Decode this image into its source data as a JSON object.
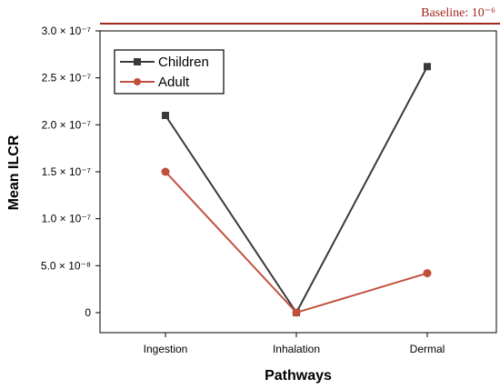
{
  "chart_data": {
    "type": "line",
    "title": "",
    "xlabel": "Pathways",
    "ylabel": "Mean ILCR",
    "categories": [
      "Ingestion",
      "Inhalation",
      "Dermal"
    ],
    "ylim": [
      0,
      3e-07
    ],
    "yticks": [
      {
        "value": 0,
        "label": "0"
      },
      {
        "value": 5e-08,
        "label": "5.0 × 10⁻⁸"
      },
      {
        "value": 1e-07,
        "label": "1.0 × 10⁻⁷"
      },
      {
        "value": 1.5e-07,
        "label": "1.5 × 10⁻⁷"
      },
      {
        "value": 2e-07,
        "label": "2.0 × 10⁻⁷"
      },
      {
        "value": 2.5e-07,
        "label": "2.5 × 10⁻⁷"
      },
      {
        "value": 3e-07,
        "label": "3.0 × 10⁻⁷"
      }
    ],
    "series": [
      {
        "name": "Children",
        "values": [
          2.1e-07,
          1e-10,
          2.62e-07
        ],
        "color": "#3a3a3a",
        "marker": "square"
      },
      {
        "name": "Adult",
        "values": [
          1.5e-07,
          1e-10,
          4.2e-08
        ],
        "color": "#c0503c",
        "marker": "circle"
      }
    ],
    "legend": "top-left",
    "grid": false,
    "annotations": [
      {
        "text": "Baseline: 10⁻⁶",
        "color": "#a0261e"
      }
    ]
  }
}
